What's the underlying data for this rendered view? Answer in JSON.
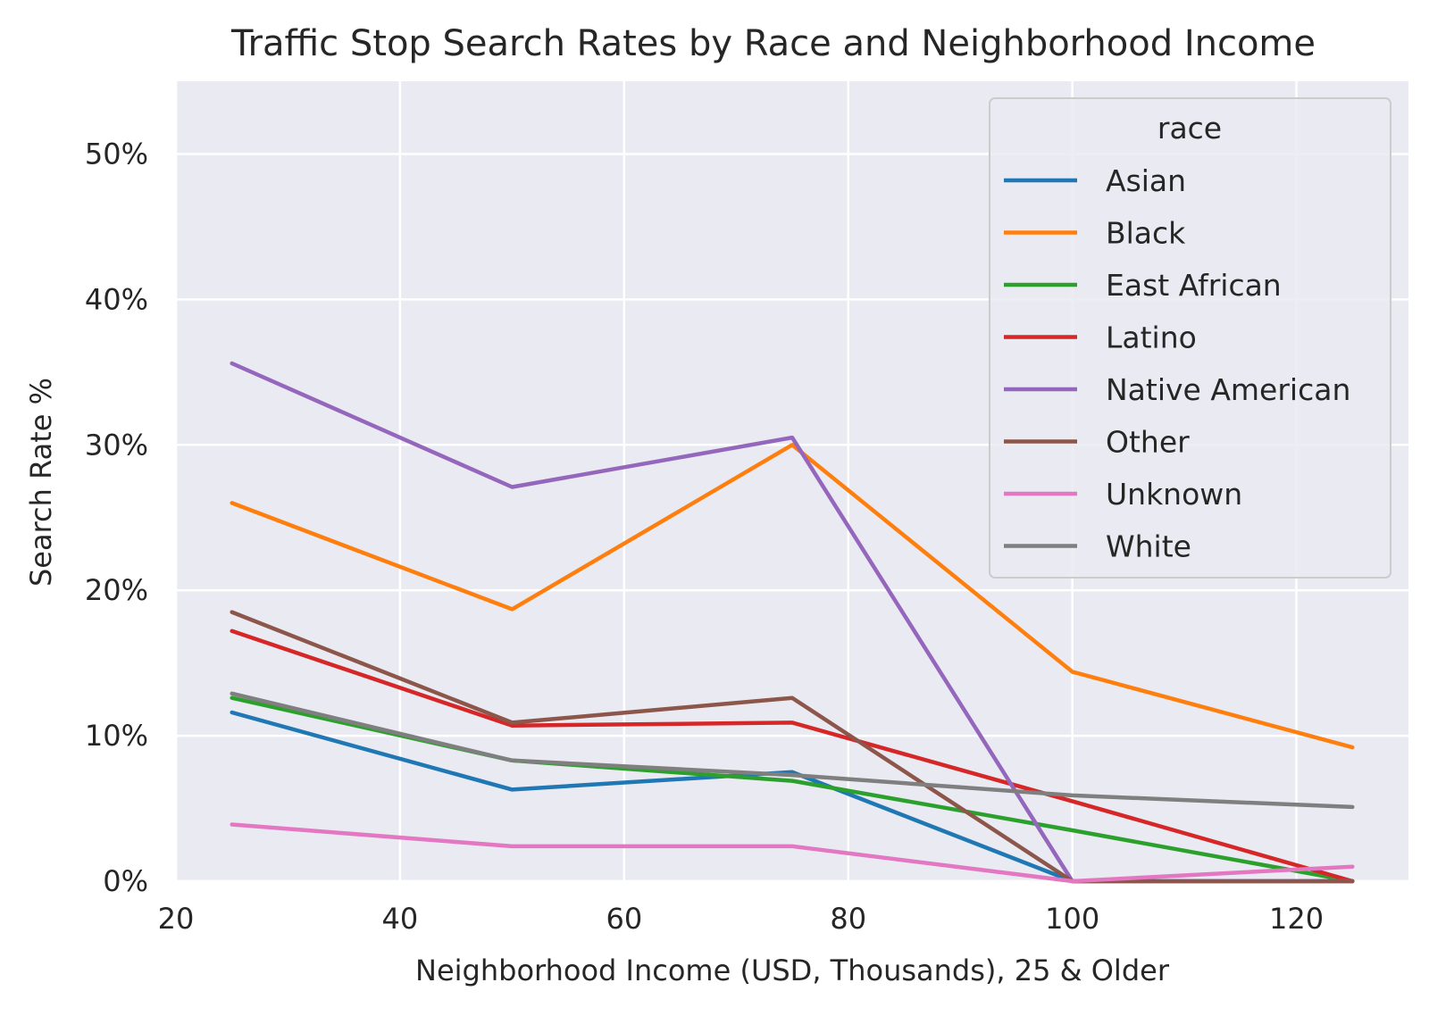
{
  "chart_data": {
    "type": "line",
    "title": "Traffic Stop Search Rates by Race and Neighborhood Income",
    "xlabel": "Neighborhood Income (USD, Thousands), 25 & Older",
    "ylabel": "Search Rate %",
    "xlim": [
      20,
      130
    ],
    "ylim": [
      0,
      55
    ],
    "xticks": [
      20,
      40,
      60,
      80,
      100,
      120
    ],
    "yticks": [
      0,
      10,
      20,
      30,
      40,
      50
    ],
    "ytick_labels": [
      "0%",
      "10%",
      "20%",
      "30%",
      "40%",
      "50%"
    ],
    "grid": true,
    "legend": {
      "title": "race",
      "placement": "upper right"
    },
    "x": [
      25,
      50,
      75,
      100,
      125
    ],
    "series": [
      {
        "name": "Asian",
        "color": "#1f77b4",
        "values": [
          11.6,
          6.3,
          7.5,
          0.0,
          0.0
        ]
      },
      {
        "name": "Black",
        "color": "#ff7f0e",
        "values": [
          26.0,
          18.7,
          30.0,
          14.4,
          9.2
        ]
      },
      {
        "name": "East African",
        "color": "#2ca02c",
        "values": [
          12.6,
          8.3,
          6.9,
          3.5,
          0.0
        ]
      },
      {
        "name": "Latino",
        "color": "#d62728",
        "values": [
          17.2,
          10.7,
          10.9,
          5.5,
          0.0
        ]
      },
      {
        "name": "Native American",
        "color": "#9467bd",
        "values": [
          35.6,
          27.1,
          30.5,
          0.0,
          0.0
        ]
      },
      {
        "name": "Other",
        "color": "#8c564b",
        "values": [
          18.5,
          10.9,
          12.6,
          0.0,
          0.0
        ]
      },
      {
        "name": "Unknown",
        "color": "#e377c2",
        "values": [
          3.9,
          2.4,
          2.4,
          0.0,
          1.0
        ]
      },
      {
        "name": "White",
        "color": "#7f7f7f",
        "values": [
          12.9,
          8.3,
          7.3,
          5.9,
          5.1
        ]
      }
    ]
  }
}
